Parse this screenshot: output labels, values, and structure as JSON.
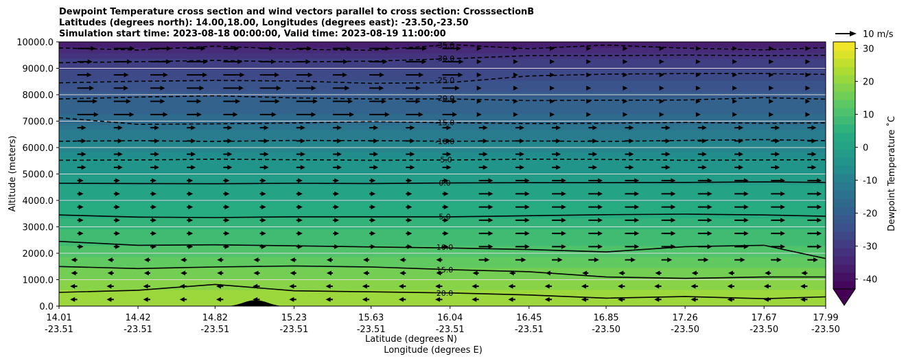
{
  "chart_data": {
    "type": "heatmap",
    "title_lines": [
      "Dewpoint Temperature cross section and wind vectors parallel to cross section: CrosssectionB",
      "Latitudes (degrees north): 14.00,18.00, Longitudes (degrees east): -23.50,-23.50",
      "Simulation start time: 2023-08-18 00:00:00, Valid time: 2023-08-19 11:00:00"
    ],
    "ylabel": "Altitude (meters)",
    "xlabel_lines": [
      "Latitude (degrees N)",
      "Longitude (degrees E)"
    ],
    "ylim": [
      0,
      10000
    ],
    "yticks": [
      "0.0",
      "1000.0",
      "2000.0",
      "3000.0",
      "4000.0",
      "5000.0",
      "6000.0",
      "7000.0",
      "8000.0",
      "9000.0",
      "10000.0"
    ],
    "xticks": [
      {
        "lat": "14.01",
        "lon": "-23.51"
      },
      {
        "lat": "14.42",
        "lon": "-23.51"
      },
      {
        "lat": "14.82",
        "lon": "-23.51"
      },
      {
        "lat": "15.23",
        "lon": "-23.51"
      },
      {
        "lat": "15.63",
        "lon": "-23.51"
      },
      {
        "lat": "16.04",
        "lon": "-23.51"
      },
      {
        "lat": "16.45",
        "lon": "-23.51"
      },
      {
        "lat": "16.85",
        "lon": "-23.50"
      },
      {
        "lat": "17.26",
        "lon": "-23.50"
      },
      {
        "lat": "17.67",
        "lon": "-23.50"
      },
      {
        "lat": "17.99",
        "lon": "-23.50"
      }
    ],
    "colorbar": {
      "label": "Dewpoint Temperature ˚C",
      "ticks": [
        "-40",
        "-30",
        "-20",
        "-10",
        "0",
        "10",
        "20",
        "30"
      ],
      "range": [
        -43,
        32
      ],
      "extend": "min",
      "colormap": "viridis"
    },
    "contour_labels": [
      "-35.0",
      "-30.0",
      "-25.0",
      "-20.0",
      "-15.0",
      "-10.0",
      "-5.0",
      "0.0",
      "5.0",
      "10.0",
      "15.0",
      "20.0"
    ],
    "contours": [
      {
        "level": -35,
        "style": "dashed",
        "altitudes_m": [
          9770,
          9690,
          9840,
          9720,
          9680,
          9900,
          9740,
          9880,
          9760,
          9700,
          9780
        ]
      },
      {
        "level": -30,
        "style": "dashed",
        "altitudes_m": [
          9210,
          9250,
          9300,
          9240,
          9270,
          9360,
          9480,
          9480,
          9500,
          9480,
          9490
        ]
      },
      {
        "level": -25,
        "style": "dashed",
        "altitudes_m": [
          8450,
          8510,
          8540,
          8520,
          8430,
          8460,
          8710,
          8780,
          8800,
          8800,
          8770
        ]
      },
      {
        "level": -20,
        "style": "dashed",
        "altitudes_m": [
          7840,
          7910,
          7960,
          7880,
          7840,
          7840,
          7780,
          7790,
          7800,
          7890,
          7830
        ]
      },
      {
        "level": -15,
        "style": "dashed",
        "altitudes_m": [
          7130,
          6880,
          6900,
          6930,
          6980,
          6940,
          6910,
          6920,
          6950,
          6920,
          6930
        ]
      },
      {
        "level": -10,
        "style": "dashed",
        "altitudes_m": [
          6240,
          6260,
          6230,
          6270,
          6260,
          6240,
          6250,
          6230,
          6270,
          6300,
          6260
        ]
      },
      {
        "level": -5,
        "style": "dashed",
        "altitudes_m": [
          5520,
          5530,
          5560,
          5540,
          5520,
          5530,
          5560,
          5550,
          5520,
          5530,
          5540
        ]
      },
      {
        "level": 0,
        "style": "solid",
        "altitudes_m": [
          4650,
          4640,
          4630,
          4650,
          4640,
          4660,
          4670,
          4670,
          4680,
          4700,
          4680
        ]
      },
      {
        "level": 5,
        "style": "solid",
        "altitudes_m": [
          3450,
          3370,
          3350,
          3380,
          3380,
          3380,
          3420,
          3460,
          3480,
          3450,
          3400
        ]
      },
      {
        "level": 10,
        "style": "solid",
        "altitudes_m": [
          2450,
          2300,
          2320,
          2280,
          2240,
          2200,
          2140,
          2050,
          2250,
          2300,
          1800
        ]
      },
      {
        "level": 15,
        "style": "solid",
        "altitudes_m": [
          1500,
          1420,
          1480,
          1520,
          1480,
          1380,
          1300,
          1100,
          1050,
          1100,
          1100
        ]
      },
      {
        "level": 20,
        "style": "solid",
        "altitudes_m": [
          520,
          600,
          820,
          580,
          540,
          500,
          420,
          300,
          360,
          280,
          350
        ]
      }
    ],
    "terrain": {
      "center_lat": 15.03,
      "peak_m": 220
    },
    "wind_key": {
      "label": "10 m/s"
    }
  }
}
